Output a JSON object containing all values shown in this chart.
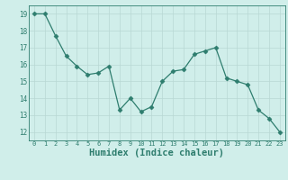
{
  "x": [
    0,
    1,
    2,
    3,
    4,
    5,
    6,
    7,
    8,
    9,
    10,
    11,
    12,
    13,
    14,
    15,
    16,
    17,
    18,
    19,
    20,
    21,
    22,
    23
  ],
  "y": [
    19,
    19,
    17.7,
    16.5,
    15.9,
    15.4,
    15.5,
    15.9,
    13.3,
    14.0,
    13.2,
    13.5,
    15.0,
    15.6,
    15.7,
    16.6,
    16.8,
    17.0,
    15.2,
    15.0,
    14.8,
    13.3,
    12.8,
    12.0
  ],
  "line_color": "#2e7d6e",
  "marker": "D",
  "marker_size": 2.5,
  "bg_color": "#d0eeea",
  "grid_color": "#b8d8d4",
  "tick_color": "#2e7d6e",
  "xlabel": "Humidex (Indice chaleur)",
  "xlabel_fontsize": 7.5,
  "xlim": [
    -0.5,
    23.5
  ],
  "ylim": [
    11.5,
    19.5
  ],
  "yticks": [
    12,
    13,
    14,
    15,
    16,
    17,
    18,
    19
  ],
  "xticks": [
    0,
    1,
    2,
    3,
    4,
    5,
    6,
    7,
    8,
    9,
    10,
    11,
    12,
    13,
    14,
    15,
    16,
    17,
    18,
    19,
    20,
    21,
    22,
    23
  ]
}
